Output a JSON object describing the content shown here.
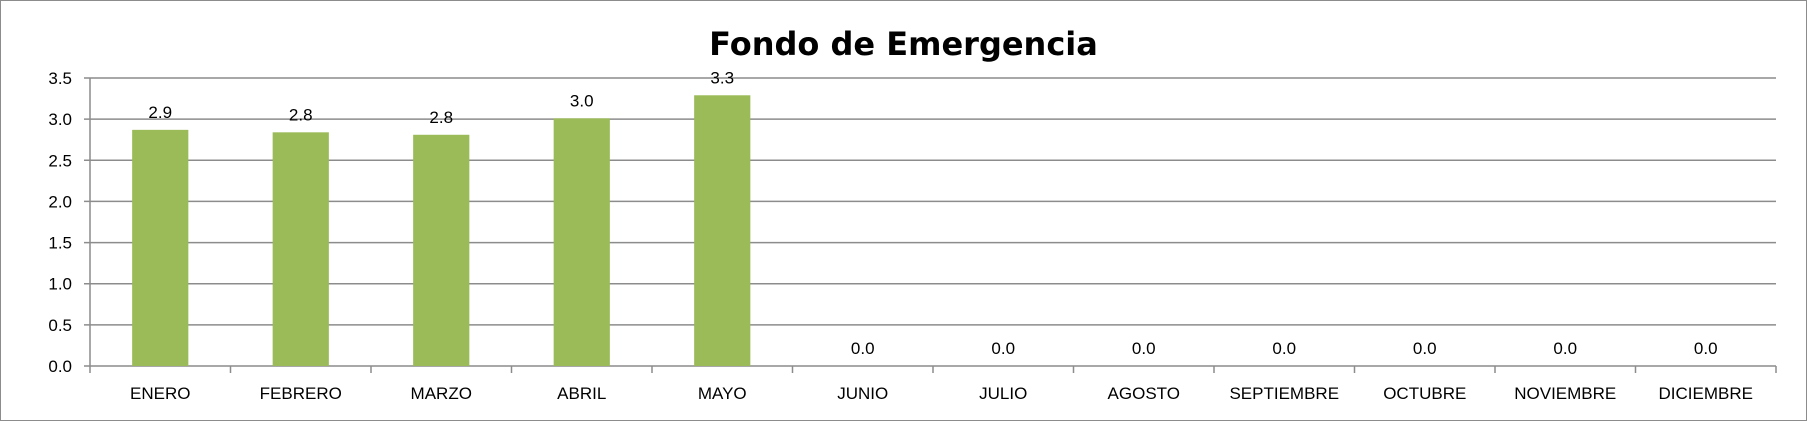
{
  "chart_data": {
    "type": "bar",
    "title": "Fondo de Emergencia",
    "categories": [
      "ENERO",
      "FEBRERO",
      "MARZO",
      "ABRIL",
      "MAYO",
      "JUNIO",
      "JULIO",
      "AGOSTO",
      "SEPTIEMBRE",
      "OCTUBRE",
      "NOVIEMBRE",
      "DICIEMBRE"
    ],
    "values": [
      2.87,
      2.84,
      2.81,
      3.01,
      3.29,
      0,
      0,
      0,
      0,
      0,
      0,
      0
    ],
    "data_labels": [
      "2.9",
      "2.8",
      "2.8",
      "3.0",
      "3.3",
      "0.0",
      "0.0",
      "0.0",
      "0.0",
      "0.0",
      "0.0",
      "0.0"
    ],
    "yticks": [
      "0.0",
      "0.5",
      "1.0",
      "1.5",
      "2.0",
      "2.5",
      "3.0",
      "3.5"
    ],
    "ylim": [
      0,
      3.5
    ],
    "xlabel": "",
    "ylabel": "",
    "grid": true,
    "legend": "none",
    "bar_color": "#9bbb59",
    "grid_color": "#8c8c8c"
  }
}
